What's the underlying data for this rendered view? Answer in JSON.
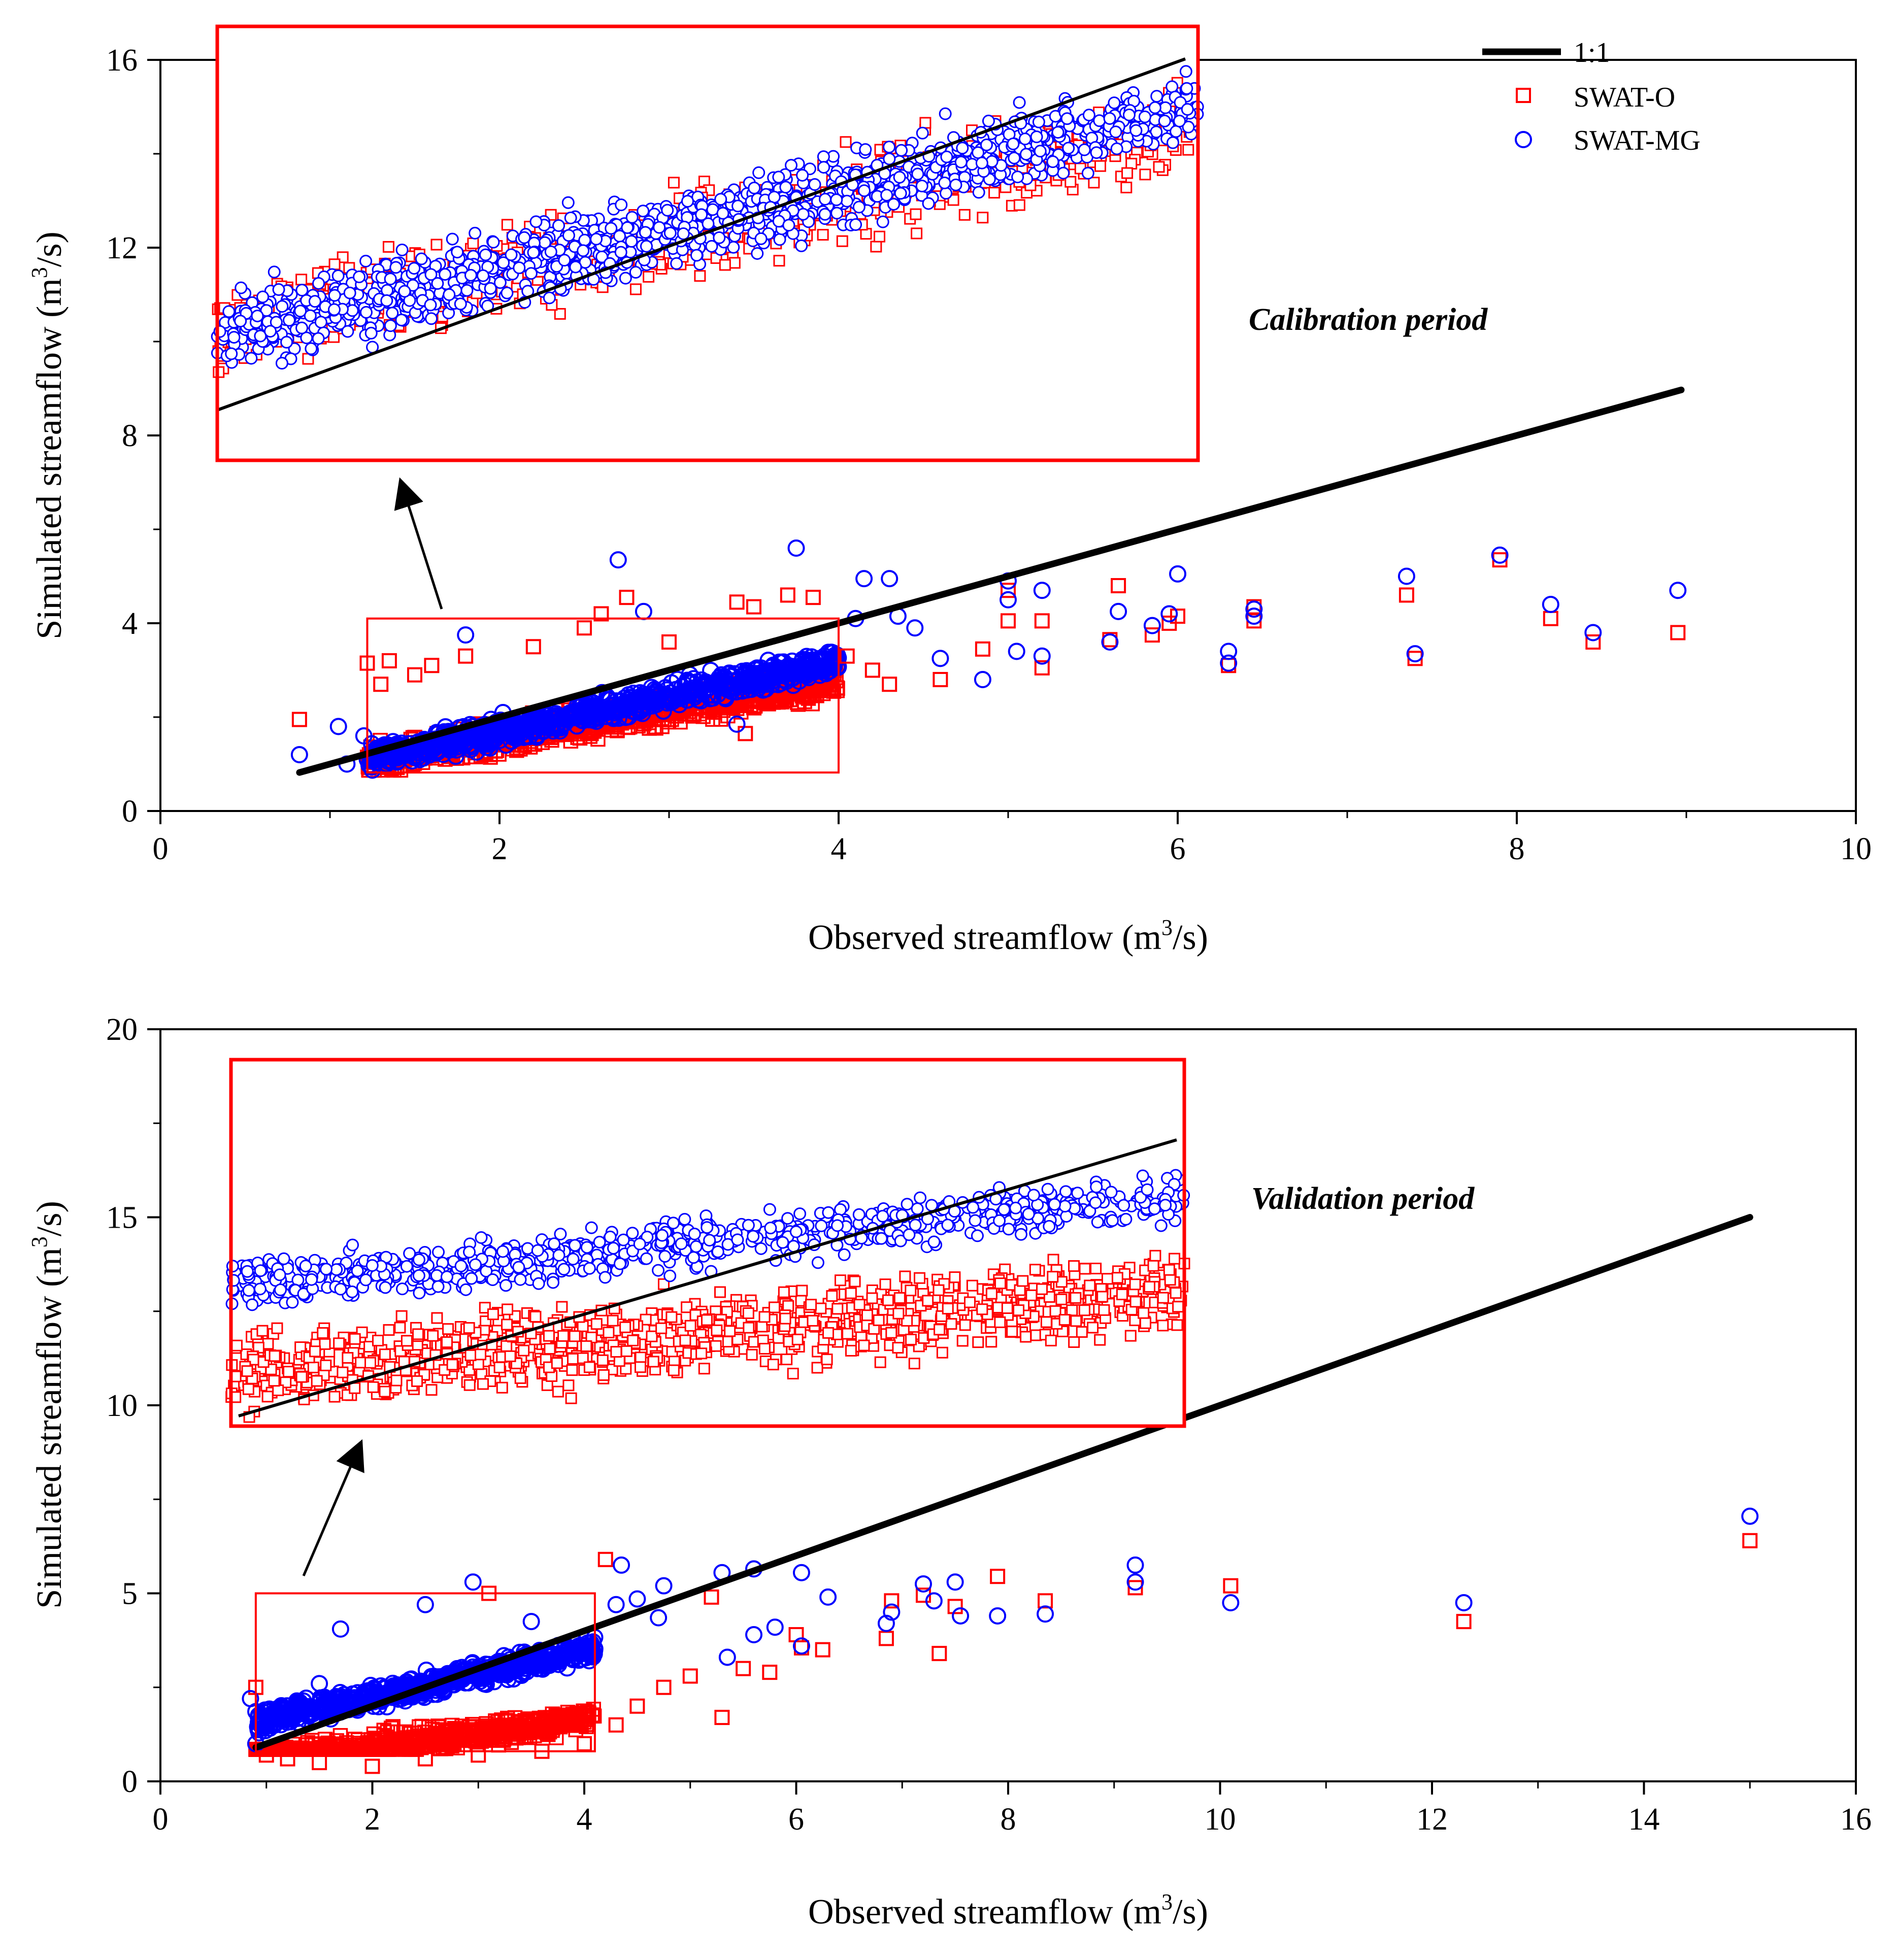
{
  "colors": {
    "swat_o": "#ff0000",
    "swat_mg": "#0000ff",
    "line": "#000000",
    "box": "#ff0000"
  },
  "legend": {
    "one_to_one": "1:1",
    "swat_o": "SWAT-O",
    "swat_mg": "SWAT-MG"
  },
  "chart_data": [
    {
      "type": "scatter",
      "title": "Calibration period",
      "xlabel": "Observed streamflow (m3/s)",
      "ylabel": "Simulated streamflow (m3/s)",
      "xlim": [
        0,
        10
      ],
      "ylim": [
        0,
        16
      ],
      "xticks": [
        "0",
        "2",
        "4",
        "6",
        "8",
        "10"
      ],
      "yticks": [
        "0",
        "4",
        "8",
        "12",
        "16"
      ],
      "one_to_one_line": {
        "x": [
          0.82,
          8.97
        ],
        "y": [
          0.82,
          8.97
        ]
      },
      "zoom_window": {
        "x": [
          1.22,
          4.0
        ],
        "y": [
          0.82,
          4.1
        ]
      },
      "inset_note": "Inset shows the zoom_window region (x 1.2-4.0, y 0.8-4.1) enlarged",
      "series": [
        {
          "name": "SWAT-O",
          "marker": "square",
          "representative_points": [
            [
              0.82,
              1.95
            ],
            [
              1.22,
              3.15
            ],
            [
              1.3,
              2.7
            ],
            [
              1.35,
              3.2
            ],
            [
              1.5,
              2.9
            ],
            [
              1.6,
              3.1
            ],
            [
              1.8,
              3.3
            ],
            [
              2.2,
              3.5
            ],
            [
              2.5,
              3.9
            ],
            [
              2.6,
              4.2
            ],
            [
              2.75,
              4.55
            ],
            [
              3.0,
              3.6
            ],
            [
              3.45,
              1.65
            ],
            [
              3.5,
              4.35
            ],
            [
              3.7,
              4.6
            ],
            [
              3.85,
              4.55
            ],
            [
              3.4,
              4.45
            ],
            [
              4.05,
              3.3
            ],
            [
              4.2,
              3.0
            ],
            [
              4.3,
              2.7
            ],
            [
              4.6,
              2.8
            ],
            [
              4.85,
              3.45
            ],
            [
              5.0,
              4.7
            ],
            [
              5.0,
              4.05
            ],
            [
              5.2,
              3.05
            ],
            [
              5.2,
              4.05
            ],
            [
              5.65,
              4.8
            ],
            [
              5.6,
              3.65
            ],
            [
              5.85,
              3.75
            ],
            [
              5.95,
              4.0
            ],
            [
              6.0,
              4.15
            ],
            [
              6.3,
              3.1
            ],
            [
              6.45,
              4.35
            ],
            [
              6.45,
              4.05
            ],
            [
              7.4,
              3.25
            ],
            [
              7.35,
              4.6
            ],
            [
              7.9,
              5.35
            ],
            [
              8.2,
              4.1
            ],
            [
              8.45,
              3.6
            ],
            [
              8.95,
              3.8
            ]
          ]
        },
        {
          "name": "SWAT-MG",
          "marker": "circle",
          "representative_points": [
            [
              0.82,
              1.2
            ],
            [
              1.1,
              1.0
            ],
            [
              1.05,
              1.8
            ],
            [
              1.2,
              1.6
            ],
            [
              1.8,
              3.75
            ],
            [
              2.7,
              5.35
            ],
            [
              2.85,
              4.25
            ],
            [
              3.4,
              1.85
            ],
            [
              3.75,
              5.6
            ],
            [
              4.1,
              4.1
            ],
            [
              4.15,
              4.95
            ],
            [
              4.3,
              4.95
            ],
            [
              4.35,
              4.15
            ],
            [
              4.45,
              3.9
            ],
            [
              4.6,
              3.25
            ],
            [
              4.85,
              2.8
            ],
            [
              5.0,
              4.9
            ],
            [
              5.0,
              4.5
            ],
            [
              5.05,
              3.4
            ],
            [
              5.2,
              3.3
            ],
            [
              5.2,
              4.7
            ],
            [
              5.6,
              3.6
            ],
            [
              5.65,
              4.25
            ],
            [
              5.85,
              3.95
            ],
            [
              5.95,
              4.2
            ],
            [
              6.0,
              5.05
            ],
            [
              6.3,
              3.4
            ],
            [
              6.3,
              3.15
            ],
            [
              6.45,
              4.15
            ],
            [
              6.45,
              4.3
            ],
            [
              7.35,
              5.0
            ],
            [
              7.4,
              3.35
            ],
            [
              7.9,
              5.45
            ],
            [
              8.2,
              4.4
            ],
            [
              8.45,
              3.8
            ],
            [
              8.95,
              4.7
            ]
          ]
        }
      ]
    },
    {
      "type": "scatter",
      "title": "Validation period",
      "xlabel": "Observed streamflow (m3/s)",
      "ylabel": "Simulated streamflow (m3/s)",
      "xlim": [
        0,
        16
      ],
      "ylim": [
        0,
        20
      ],
      "xticks": [
        "0",
        "2",
        "4",
        "6",
        "8",
        "10",
        "12",
        "14",
        "16"
      ],
      "yticks": [
        "0",
        "5",
        "10",
        "15",
        "20"
      ],
      "one_to_one_line": {
        "x": [
          0.9,
          15.0
        ],
        "y": [
          0.9,
          15.0
        ]
      },
      "zoom_window": {
        "x": [
          0.9,
          4.1
        ],
        "y": [
          0.8,
          5.0
        ]
      },
      "inset_note": "Inset shows the zoom_window region (x 0.9-4.1, y 0.8-5.0) enlarged",
      "series": [
        {
          "name": "SWAT-O",
          "marker": "square",
          "representative_points": [
            [
              0.9,
              2.5
            ],
            [
              1.0,
              0.7
            ],
            [
              1.2,
              0.6
            ],
            [
              1.5,
              0.5
            ],
            [
              2.0,
              0.4
            ],
            [
              2.5,
              0.6
            ],
            [
              3.0,
              0.7
            ],
            [
              3.1,
              5.0
            ],
            [
              3.6,
              0.8
            ],
            [
              4.0,
              1.0
            ],
            [
              4.2,
              5.9
            ],
            [
              4.3,
              1.5
            ],
            [
              4.5,
              2.0
            ],
            [
              4.75,
              2.5
            ],
            [
              5.0,
              2.8
            ],
            [
              5.2,
              4.9
            ],
            [
              5.3,
              1.7
            ],
            [
              5.5,
              3.0
            ],
            [
              5.75,
              2.9
            ],
            [
              6.0,
              3.9
            ],
            [
              6.05,
              3.55
            ],
            [
              6.25,
              3.5
            ],
            [
              6.85,
              3.8
            ],
            [
              6.9,
              4.8
            ],
            [
              7.2,
              4.95
            ],
            [
              7.35,
              3.4
            ],
            [
              7.5,
              4.65
            ],
            [
              7.9,
              5.45
            ],
            [
              8.35,
              4.8
            ],
            [
              9.2,
              5.15
            ],
            [
              10.1,
              5.2
            ],
            [
              12.3,
              4.25
            ],
            [
              15.0,
              6.4
            ]
          ]
        },
        {
          "name": "SWAT-MG",
          "marker": "circle",
          "representative_points": [
            [
              0.85,
              2.2
            ],
            [
              0.9,
              1.0
            ],
            [
              1.0,
              1.9
            ],
            [
              1.5,
              2.6
            ],
            [
              1.7,
              4.05
            ],
            [
              2.5,
              4.7
            ],
            [
              2.95,
              5.3
            ],
            [
              3.5,
              4.25
            ],
            [
              4.3,
              4.7
            ],
            [
              4.35,
              5.75
            ],
            [
              4.5,
              4.85
            ],
            [
              4.75,
              5.2
            ],
            [
              4.7,
              4.35
            ],
            [
              5.3,
              5.55
            ],
            [
              5.35,
              3.3
            ],
            [
              5.6,
              5.65
            ],
            [
              5.6,
              3.9
            ],
            [
              5.8,
              4.1
            ],
            [
              6.05,
              5.55
            ],
            [
              6.05,
              3.6
            ],
            [
              6.3,
              4.9
            ],
            [
              6.85,
              4.2
            ],
            [
              6.9,
              4.5
            ],
            [
              7.2,
              5.25
            ],
            [
              7.3,
              4.8
            ],
            [
              7.5,
              5.3
            ],
            [
              7.55,
              4.4
            ],
            [
              7.9,
              4.4
            ],
            [
              8.35,
              4.45
            ],
            [
              9.2,
              5.75
            ],
            [
              9.2,
              5.3
            ],
            [
              10.1,
              4.75
            ],
            [
              12.3,
              4.75
            ],
            [
              15.0,
              7.05
            ]
          ]
        }
      ]
    }
  ]
}
